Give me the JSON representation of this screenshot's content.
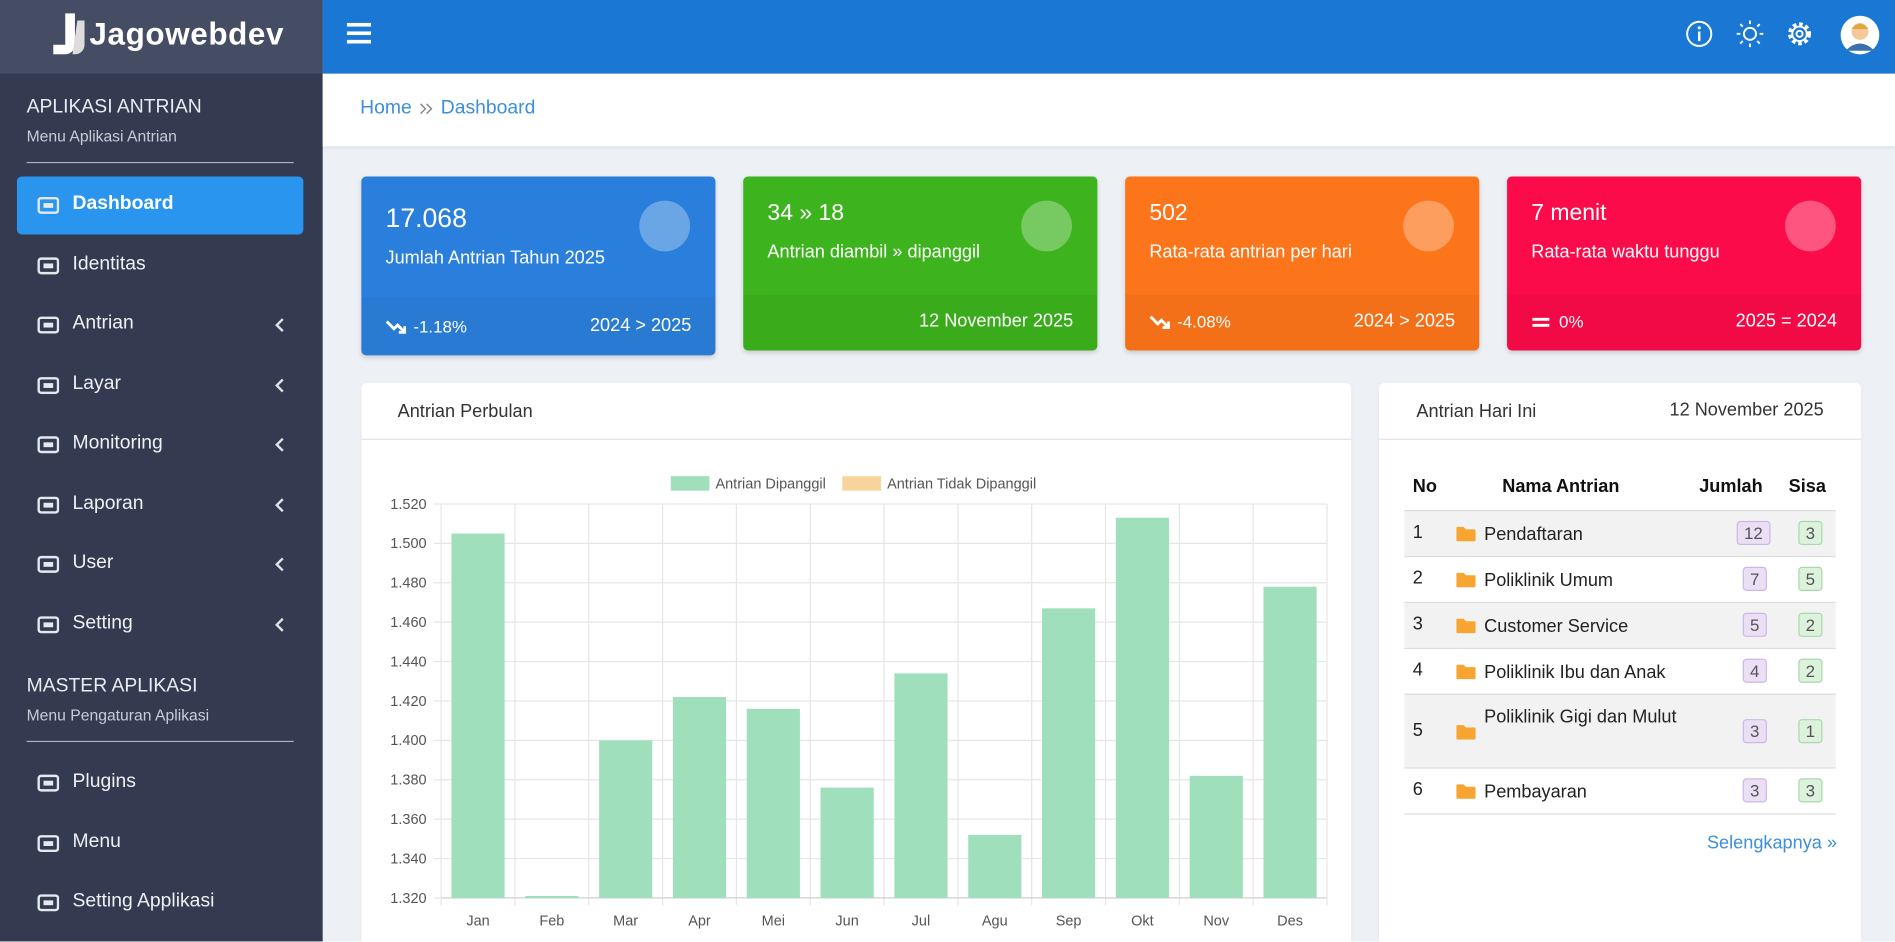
{
  "brand": "Jagowebdev",
  "sidebar": {
    "sections": [
      {
        "title": "APLIKASI ANTRIAN",
        "subtitle": "Menu Aplikasi Antrian",
        "items": [
          {
            "label": "Dashboard",
            "active": true
          },
          {
            "label": "Identitas"
          },
          {
            "label": "Antrian",
            "submenu": true
          },
          {
            "label": "Layar",
            "submenu": true
          },
          {
            "label": "Monitoring",
            "submenu": true
          },
          {
            "label": "Laporan",
            "submenu": true
          },
          {
            "label": "User",
            "submenu": true
          },
          {
            "label": "Setting",
            "submenu": true
          }
        ]
      },
      {
        "title": "MASTER APLIKASI",
        "subtitle": "Menu Pengaturan Aplikasi",
        "items": [
          {
            "label": "Plugins"
          },
          {
            "label": "Menu"
          },
          {
            "label": "Setting Applikasi"
          }
        ]
      }
    ]
  },
  "breadcrumb": [
    "Home",
    "Dashboard"
  ],
  "cards": [
    {
      "value": "17.068",
      "label": "Jumlah Antrian Tahun 2025",
      "footer_left": "-1.18%",
      "footer_right": "2024 > 2025",
      "color": "#2a7fdc"
    },
    {
      "value": "34 » 18",
      "label": "Antrian diambil » dipanggil",
      "footer_right": "12 November 2025",
      "color": "#3db31d"
    },
    {
      "value": "502",
      "label": "Rata-rata antrian per hari",
      "footer_left": "-4.08%",
      "footer_right": "2024 > 2025",
      "color": "#fd751b"
    },
    {
      "value": "7 menit",
      "label": "Rata-rata waktu tunggu",
      "footer_left": "0%",
      "footer_right": "2025 = 2024",
      "color": "#fc0b4a"
    }
  ],
  "chart_data": {
    "type": "bar",
    "title": "Antrian Perbulan",
    "categories": [
      "Jan",
      "Feb",
      "Mar",
      "Apr",
      "Mei",
      "Jun",
      "Jul",
      "Agu",
      "Sep",
      "Okt",
      "Nov",
      "Des"
    ],
    "series": [
      {
        "name": "Antrian Dipanggil",
        "color": "#9fdfbc",
        "values": [
          1505,
          1321,
          1400,
          1422,
          1416,
          1376,
          1434,
          1352,
          1467,
          1513,
          1382,
          1478
        ]
      },
      {
        "name": "Antrian Tidak Dipanggil",
        "color": "#f7d59a",
        "values": [
          null,
          null,
          null,
          null,
          null,
          null,
          null,
          null,
          null,
          null,
          null,
          null
        ]
      }
    ],
    "ylim": [
      1320,
      1520
    ],
    "yticks": [
      {
        "value": 1320,
        "label": "1.320"
      },
      {
        "value": 1340,
        "label": "1.340"
      },
      {
        "value": 1360,
        "label": "1.360"
      },
      {
        "value": 1380,
        "label": "1.380"
      },
      {
        "value": 1400,
        "label": "1.400"
      },
      {
        "value": 1420,
        "label": "1.420"
      },
      {
        "value": 1440,
        "label": "1.440"
      },
      {
        "value": 1460,
        "label": "1.460"
      },
      {
        "value": 1480,
        "label": "1.480"
      },
      {
        "value": 1500,
        "label": "1.500"
      },
      {
        "value": 1520,
        "label": "1.520"
      }
    ],
    "grid": true,
    "legend": "top"
  },
  "table": {
    "title": "Antrian Hari Ini",
    "date": "12 November 2025",
    "headers": [
      "No",
      "Nama Antrian",
      "Jumlah",
      "Sisa"
    ],
    "rows": [
      [
        1,
        "Pendaftaran",
        12,
        3
      ],
      [
        2,
        "Poliklinik Umum",
        7,
        5
      ],
      [
        3,
        "Customer Service",
        5,
        2
      ],
      [
        4,
        "Poliklinik Ibu dan Anak",
        4,
        2
      ],
      [
        5,
        "Poliklinik Gigi dan Mulut",
        3,
        1
      ],
      [
        6,
        "Pembayaran",
        3,
        3
      ]
    ],
    "link": "Selengkapnya »"
  }
}
